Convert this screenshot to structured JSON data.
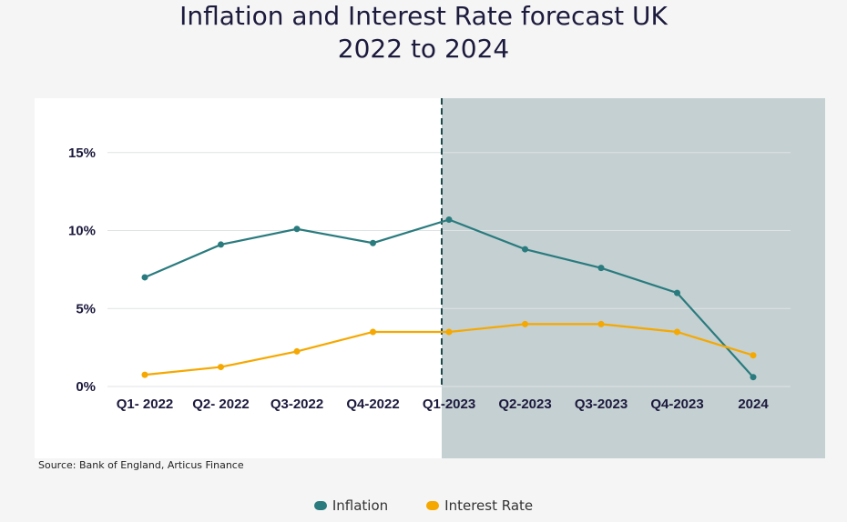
{
  "chart_data": {
    "type": "line",
    "title": [
      "Inflation and Interest Rate forecast UK",
      "2022 to 2024"
    ],
    "categories": [
      "Q1- 2022",
      "Q2- 2022",
      "Q3-2022",
      "Q4-2022",
      "Q1-2023",
      "Q2-2023",
      "Q3-2023",
      "Q4-2023",
      "2024"
    ],
    "series": [
      {
        "name": "Inflation",
        "color": "#2a7b7e",
        "values": [
          7.0,
          9.1,
          10.1,
          9.2,
          10.7,
          8.8,
          7.6,
          6.0,
          0.6
        ]
      },
      {
        "name": "Interest Rate",
        "color": "#f5a800",
        "values": [
          0.75,
          1.25,
          2.25,
          3.5,
          3.5,
          4.0,
          4.0,
          3.5,
          2.0
        ]
      }
    ],
    "yticks": [
      "0%",
      "5%",
      "10%",
      "15%"
    ],
    "ytick_values": [
      0,
      5,
      10,
      15
    ],
    "ylim": [
      0,
      17.5
    ],
    "grid": true,
    "forecast_region": {
      "start_category": "Q1-2023",
      "shade_color": "#c5d0d2",
      "divider": "dashed"
    },
    "legend_position": "bottom",
    "source": "Source: Bank of England, Articus Finance"
  }
}
